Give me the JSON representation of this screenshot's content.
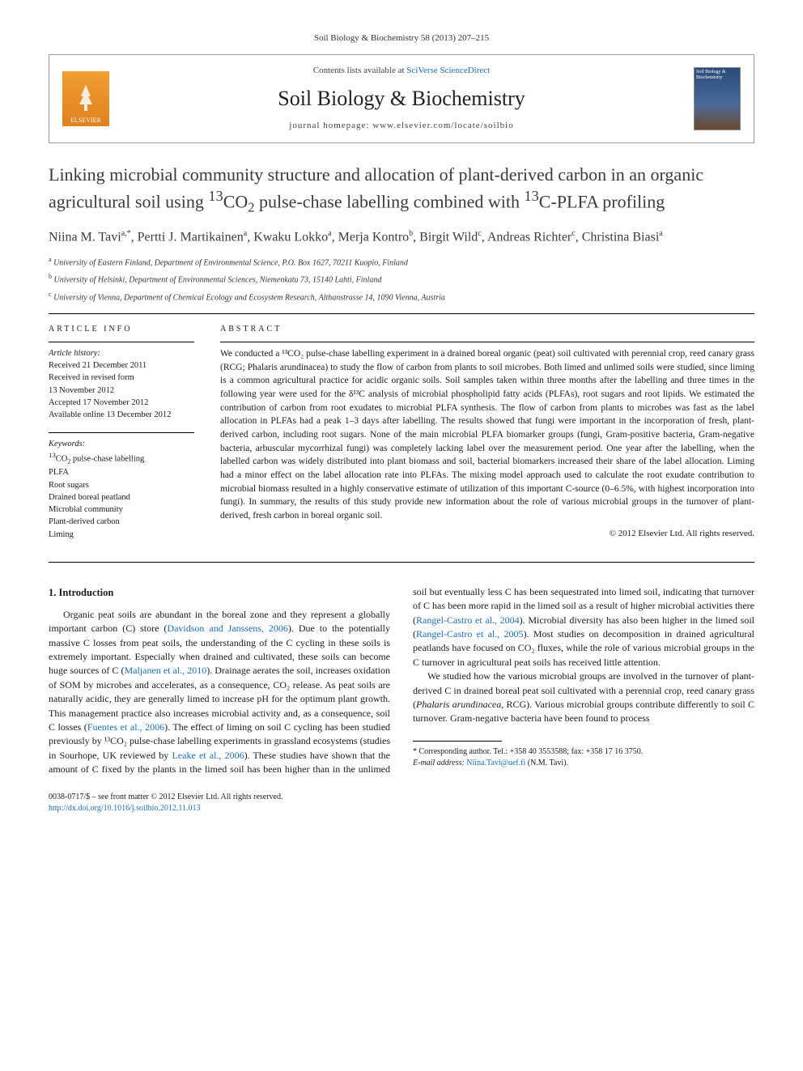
{
  "citation": "Soil Biology & Biochemistry 58 (2013) 207–215",
  "header": {
    "contents_prefix": "Contents lists available at ",
    "contents_link": "SciVerse ScienceDirect",
    "journal": "Soil Biology & Biochemistry",
    "homepage_prefix": "journal homepage: ",
    "homepage": "www.elsevier.com/locate/soilbio",
    "publisher_logo_label": "ELSEVIER",
    "cover_label": "Soil Biology & Biochemistry"
  },
  "title_parts": {
    "p0": "Linking microbial community structure and allocation of plant-derived carbon in an organic agricultural soil using ",
    "p1": "CO",
    "p2": " pulse-chase labelling combined with ",
    "p3": "C-PLFA profiling"
  },
  "authors_html": "Niina M. Tavi<sup>a,*</sup>, Pertti J. Martikainen<sup>a</sup>, Kwaku Lokko<sup>a</sup>, Merja Kontro<sup>b</sup>, Birgit Wild<sup>c</sup>, Andreas Richter<sup>c</sup>, Christina Biasi<sup>a</sup>",
  "affiliations": [
    {
      "sup": "a",
      "text": "University of Eastern Finland, Department of Environmental Science, P.O. Box 1627, 70211 Kuopio, Finland"
    },
    {
      "sup": "b",
      "text": "University of Helsinki, Department of Environmental Sciences, Niemenkatu 73, 15140 Lahti, Finland"
    },
    {
      "sup": "c",
      "text": "University of Vienna, Department of Chemical Ecology and Ecosystem Research, Althanstrasse 14, 1090 Vienna, Austria"
    }
  ],
  "info": {
    "heading": "ARTICLE INFO",
    "history_label": "Article history:",
    "history": [
      "Received 21 December 2011",
      "Received in revised form",
      "13 November 2012",
      "Accepted 17 November 2012",
      "Available online 13 December 2012"
    ],
    "keywords_label": "Keywords:",
    "keywords_line0a": "CO",
    "keywords_line0b": " pulse-chase labelling",
    "keywords_rest": [
      "PLFA",
      "Root sugars",
      "Drained boreal peatland",
      "Microbial community",
      "Plant-derived carbon",
      "Liming"
    ]
  },
  "abstract": {
    "heading": "ABSTRACT",
    "text": "We conducted a ¹³CO₂ pulse-chase labelling experiment in a drained boreal organic (peat) soil cultivated with perennial crop, reed canary grass (RCG; Phalaris arundinacea) to study the flow of carbon from plants to soil microbes. Both limed and unlimed soils were studied, since liming is a common agricultural practice for acidic organic soils. Soil samples taken within three months after the labelling and three times in the following year were used for the δ¹³C analysis of microbial phospholipid fatty acids (PLFAs), root sugars and root lipids. We estimated the contribution of carbon from root exudates to microbial PLFA synthesis. The flow of carbon from plants to microbes was fast as the label allocation in PLFAs had a peak 1–3 days after labelling. The results showed that fungi were important in the incorporation of fresh, plant-derived carbon, including root sugars. None of the main microbial PLFA biomarker groups (fungi, Gram-positive bacteria, Gram-negative bacteria, arbuscular mycorrhizal fungi) was completely lacking label over the measurement period. One year after the labelling, when the labelled carbon was widely distributed into plant biomass and soil, bacterial biomarkers increased their share of the label allocation. Liming had a minor effect on the label allocation rate into PLFAs. The mixing model approach used to calculate the root exudate contribution to microbial biomass resulted in a highly conservative estimate of utilization of this important C-source (0–6.5%, with highest incorporation into fungi). In summary, the results of this study provide new information about the role of various microbial groups in the turnover of plant-derived, fresh carbon in boreal organic soil.",
    "copyright": "© 2012 Elsevier Ltd. All rights reserved."
  },
  "body": {
    "section_heading": "1. Introduction",
    "col1_p1_a": "Organic peat soils are abundant in the boreal zone and they represent a globally important carbon (C) store (",
    "ref1": "Davidson and Janssens, 2006",
    "col1_p1_b": "). Due to the potentially massive C losses from peat soils, the understanding of the C cycling in these soils is extremely important. Especially when drained and cultivated, these soils can become huge sources of C (",
    "ref2": "Maljanen et al., 2010",
    "col1_p1_c": "). Drainage aerates the soil, increases oxidation of SOM by microbes and accelerates, as a consequence, CO₂ release. As peat soils are naturally acidic, they are generally limed to increase pH for the optimum plant growth. This management practice also increases microbial activity and, as a consequence, soil C losses (",
    "ref3": "Fuentes et al., 2006",
    "col1_p1_d": "). The effect of",
    "col2_p1_a": "liming on soil C cycling has been studied previously by ¹³CO₂ pulse-chase labelling experiments in grassland ecosystems (studies in Sourhope, UK reviewed by ",
    "ref4": "Leake et al., 2006",
    "col2_p1_b": "). These studies have shown that the amount of C fixed by the plants in the limed soil has been higher than in the unlimed soil but eventually less C has been sequestrated into limed soil, indicating that turnover of C has been more rapid in the limed soil as a result of higher microbial activities there (",
    "ref5": "Rangel-Castro et al., 2004",
    "col2_p1_c": "). Microbial diversity has also been higher in the limed soil (",
    "ref6": "Rangel-Castro et al., 2005",
    "col2_p1_d": "). Most studies on decomposition in drained agricultural peatlands have focused on CO₂ fluxes, while the role of various microbial groups in the C turnover in agricultural peat soils has received little attention.",
    "col2_p2_a": "We studied how the various microbial groups are involved in the turnover of plant-derived C in drained boreal peat soil cultivated with a perennial crop, reed canary grass (",
    "col2_p2_italic": "Phalaris arundinacea",
    "col2_p2_b": ", RCG). Various microbial groups contribute differently to soil C turnover. Gram-negative bacteria have been found to process"
  },
  "footnote": {
    "corresponding": "* Corresponding author. Tel.: +358 40 3553588; fax: +358 17 16 3750.",
    "email_label": "E-mail address: ",
    "email": "Niina.Tavi@uef.fi",
    "email_who": " (N.M. Tavi)."
  },
  "front_matter": {
    "line1": "0038-0717/$ – see front matter © 2012 Elsevier Ltd. All rights reserved.",
    "doi": "http://dx.doi.org/10.1016/j.soilbio.2012.11.013"
  },
  "colors": {
    "link": "#1b6fb5",
    "text": "#1a1a1a"
  }
}
